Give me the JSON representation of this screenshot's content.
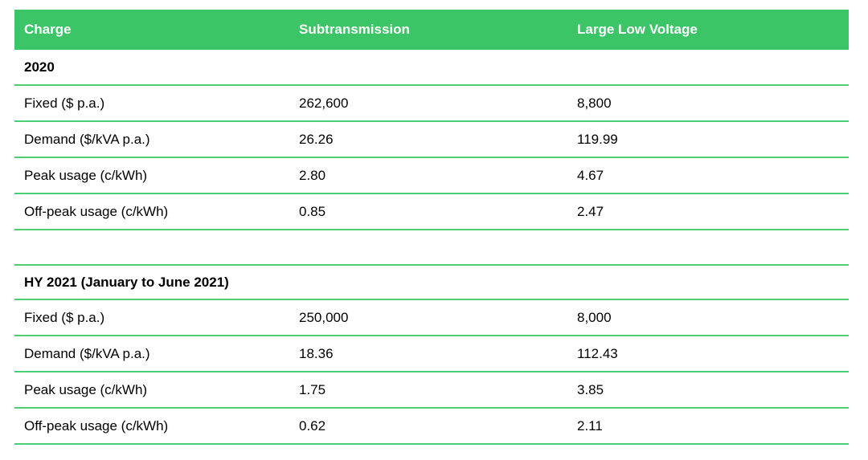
{
  "table": {
    "accent_color": "#3bc566",
    "divider_color": "#4fcd72",
    "header": {
      "columns": [
        "Charge",
        "Subtransmission",
        "Large Low Voltage"
      ]
    },
    "sections": [
      {
        "title": "2020",
        "rows": [
          {
            "label": "Fixed ($ p.a.)",
            "subtransmission": "262,600",
            "large_low_voltage": "8,800"
          },
          {
            "label": "Demand ($/kVA p.a.)",
            "subtransmission": "26.26",
            "large_low_voltage": "119.99"
          },
          {
            "label": "Peak usage (c/kWh)",
            "subtransmission": "2.80",
            "large_low_voltage": "4.67"
          },
          {
            "label": "Off-peak usage (c/kWh)",
            "subtransmission": "0.85",
            "large_low_voltage": "2.47"
          }
        ]
      },
      {
        "title": "HY 2021 (January to June 2021)",
        "rows": [
          {
            "label": "Fixed ($ p.a.)",
            "subtransmission": "250,000",
            "large_low_voltage": "8,000"
          },
          {
            "label": "Demand ($/kVA p.a.)",
            "subtransmission": "18.36",
            "large_low_voltage": "112.43"
          },
          {
            "label": "Peak usage (c/kWh)",
            "subtransmission": "1.75",
            "large_low_voltage": "3.85"
          },
          {
            "label": "Off-peak usage (c/kWh)",
            "subtransmission": "0.62",
            "large_low_voltage": "2.11"
          }
        ]
      }
    ]
  }
}
